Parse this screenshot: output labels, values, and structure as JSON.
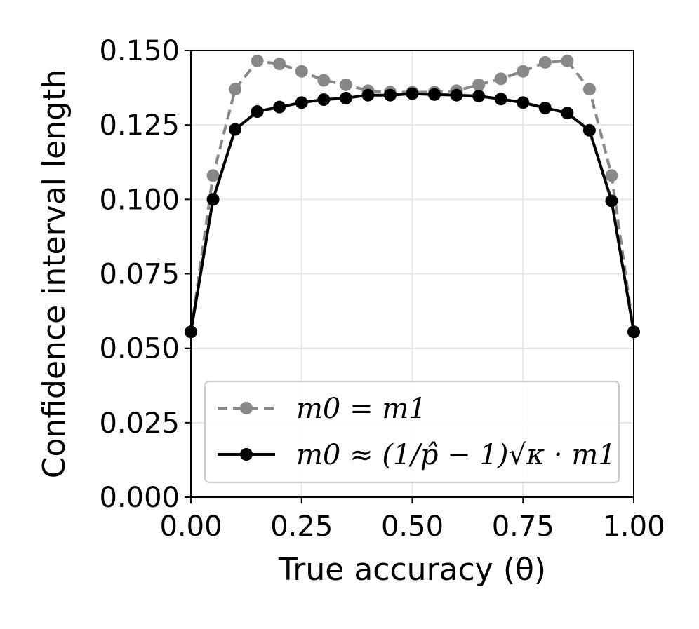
{
  "chart_data": {
    "type": "line",
    "xlabel": "True accuracy (θ)",
    "ylabel": "Confidence interval length",
    "xlim": [
      0,
      1
    ],
    "ylim": [
      0,
      0.15
    ],
    "xticks": [
      "0.00",
      "0.25",
      "0.50",
      "0.75",
      "1.00"
    ],
    "yticks": [
      "0.000",
      "0.025",
      "0.050",
      "0.075",
      "0.100",
      "0.125",
      "0.150"
    ],
    "grid": true,
    "legend_position": "lower-center",
    "x": [
      0.0,
      0.05,
      0.1,
      0.15,
      0.2,
      0.25,
      0.3,
      0.35,
      0.4,
      0.45,
      0.5,
      0.55,
      0.6,
      0.65,
      0.7,
      0.75,
      0.8,
      0.85,
      0.9,
      0.95,
      1.0
    ],
    "series": [
      {
        "name": "m0 = m1",
        "color": "#888888",
        "dash": true,
        "values": [
          0.0555,
          0.108,
          0.137,
          0.1465,
          0.1455,
          0.143,
          0.14,
          0.1385,
          0.1365,
          0.136,
          0.136,
          0.136,
          0.1365,
          0.1385,
          0.1405,
          0.143,
          0.146,
          0.1465,
          0.137,
          0.108,
          0.0555
        ]
      },
      {
        "name": "m0 ≈ (1/p̂ − 1)√κ · m1",
        "color": "#000000",
        "dash": false,
        "values": [
          0.0555,
          0.1,
          0.1235,
          0.1295,
          0.131,
          0.1325,
          0.1335,
          0.134,
          0.135,
          0.135,
          0.1355,
          0.1352,
          0.135,
          0.1347,
          0.1337,
          0.1325,
          0.1307,
          0.129,
          0.1232,
          0.0995,
          0.0555
        ]
      }
    ]
  }
}
